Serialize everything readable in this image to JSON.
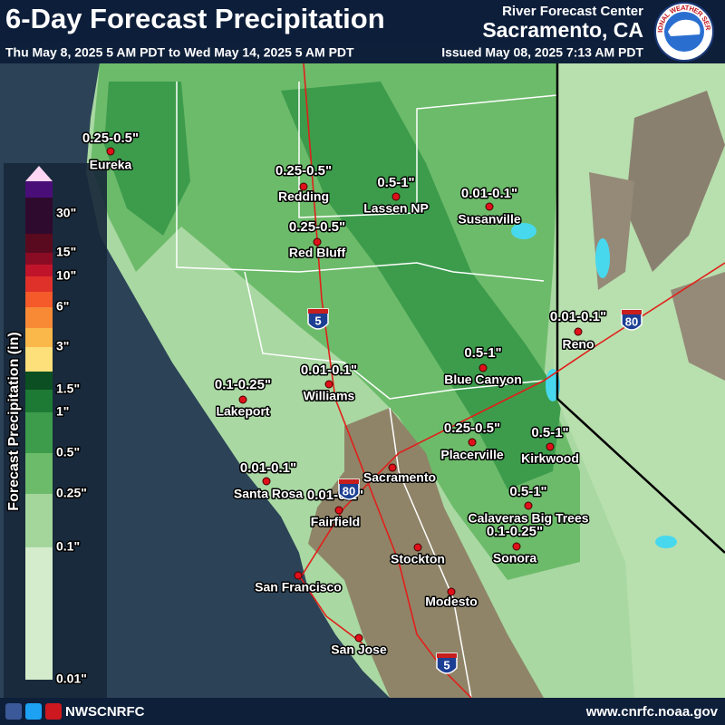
{
  "header": {
    "title": "6-Day Forecast Precipitation",
    "period": "Thu May 8, 2025 5 AM PDT to Wed May 14, 2025 5 AM PDT",
    "issued": "Issued May 08, 2025 7:13 AM PDT",
    "center": "River Forecast Center",
    "location": "Sacramento, CA",
    "logo": "NATIONAL WEATHER SERVICE"
  },
  "legend": {
    "title": "Forecast Precipitation (in)",
    "colors": [
      "#ffd6f4",
      "#4a0e78",
      "#2e0a2e",
      "#5a0a1e",
      "#8a0c24",
      "#c0142a",
      "#e0302a",
      "#f45a2a",
      "#f88a36",
      "#fbb84a",
      "#fde07a",
      "#0b4f22",
      "#1c7a34",
      "#3c9c4c",
      "#6cbb6a",
      "#a4d69c",
      "#d4eccb"
    ],
    "labels": [
      "30\"",
      "15\"",
      "10\"",
      "6\"",
      "3\"",
      "1.5\"",
      "1\"",
      "0.5\"",
      "0.25\"",
      "0.1\"",
      "0.01\""
    ]
  },
  "cities": [
    {
      "name": "Eureka",
      "amount": "0.25-0.5\""
    },
    {
      "name": "Redding",
      "amount": "0.25-0.5\""
    },
    {
      "name": "Lassen NP",
      "amount": "0.5-1\""
    },
    {
      "name": "Susanville",
      "amount": "0.01-0.1\""
    },
    {
      "name": "Red Bluff",
      "amount": "0.25-0.5\""
    },
    {
      "name": "Reno",
      "amount": "0.01-0.1\""
    },
    {
      "name": "Blue Canyon",
      "amount": "0.5-1\""
    },
    {
      "name": "Williams",
      "amount": "0.01-0.1\""
    },
    {
      "name": "Lakeport",
      "amount": "0.1-0.25\""
    },
    {
      "name": "Placerville",
      "amount": "0.25-0.5\""
    },
    {
      "name": "Kirkwood",
      "amount": "0.5-1\""
    },
    {
      "name": "Sacramento"
    },
    {
      "name": "Santa Rosa",
      "amount": "0.01-0.1\""
    },
    {
      "name": "Fairfield",
      "amount": "0.01-0.1\""
    },
    {
      "name": "Calaveras Big Trees",
      "amount": "0.5-1\""
    },
    {
      "name": "Sonora",
      "amount": "0.1-0.25\""
    },
    {
      "name": "Stockton"
    },
    {
      "name": "San Francisco"
    },
    {
      "name": "Modesto"
    },
    {
      "name": "San Jose"
    }
  ],
  "shields": [
    "5",
    "80",
    "80",
    "5"
  ],
  "footer": {
    "handle": "NWSCNRFC",
    "url": "www.cnrfc.noaa.gov"
  }
}
